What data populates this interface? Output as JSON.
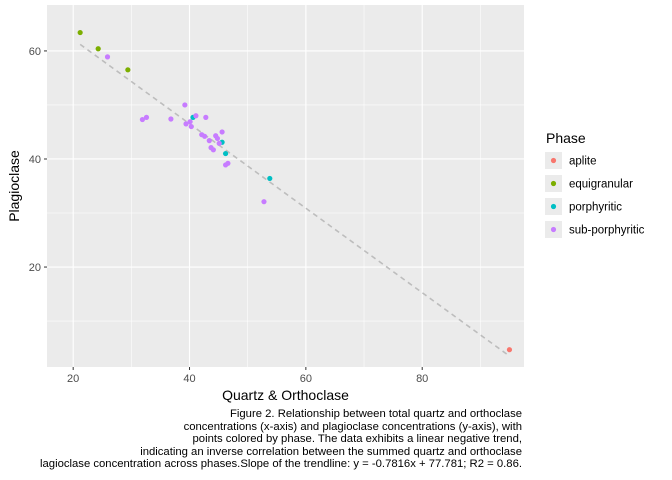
{
  "chart_data": {
    "type": "scatter",
    "xlabel": "Quartz & Orthoclase",
    "ylabel": "Plagioclase",
    "xlim": [
      15.5,
      97.5
    ],
    "ylim": [
      1.5,
      68.5
    ],
    "x_ticks": [
      20,
      40,
      60,
      80
    ],
    "y_ticks": [
      20,
      40,
      60
    ],
    "x_tick_labels": [
      "20",
      "40",
      "60",
      "80"
    ],
    "y_tick_labels": [
      "20",
      "40",
      "60"
    ],
    "grid": true,
    "legend_position": "right",
    "legend_title": "Phase",
    "series": [
      {
        "name": "aplite",
        "color": "#F8766D",
        "points": [
          [
            95.0,
            4.7
          ]
        ]
      },
      {
        "name": "equigranular",
        "color": "#7CAE00",
        "points": [
          [
            21.2,
            63.4
          ],
          [
            24.3,
            60.4
          ],
          [
            29.4,
            56.5
          ]
        ]
      },
      {
        "name": "porphyritic",
        "color": "#00BFC4",
        "points": [
          [
            40.6,
            47.7
          ],
          [
            45.6,
            43.1
          ],
          [
            46.2,
            41.0
          ],
          [
            53.8,
            36.4
          ]
        ]
      },
      {
        "name": "sub-porphyritic",
        "color": "#C77CFF",
        "points": [
          [
            25.9,
            58.9
          ],
          [
            31.9,
            47.3
          ],
          [
            32.6,
            47.7
          ],
          [
            36.8,
            47.4
          ],
          [
            39.2,
            50.0
          ],
          [
            39.4,
            46.5
          ],
          [
            40.1,
            46.9
          ],
          [
            40.3,
            46.0
          ],
          [
            41.1,
            48.0
          ],
          [
            42.1,
            44.5
          ],
          [
            42.6,
            44.2
          ],
          [
            42.8,
            47.7
          ],
          [
            43.4,
            43.4
          ],
          [
            43.7,
            42.1
          ],
          [
            44.1,
            41.7
          ],
          [
            44.5,
            44.3
          ],
          [
            44.8,
            43.8
          ],
          [
            45.1,
            42.9
          ],
          [
            45.6,
            45.0
          ],
          [
            46.2,
            38.9
          ],
          [
            46.6,
            39.2
          ],
          [
            52.8,
            32.1
          ]
        ]
      }
    ],
    "trendline": {
      "slope": -0.7816,
      "intercept": 77.781,
      "x_range": [
        21.2,
        95.0
      ],
      "color": "#bdbdbd",
      "dashed": true
    },
    "caption_lines": [
      "Figure 2. Relationship between total quartz and orthoclase",
      "concentrations (x-axis) and plagioclase concentrations (y-axis), with",
      "points colored by phase. The data exhibits a linear negative trend,",
      "indicating an inverse correlation between the summed quartz and orthoclase",
      "lagioclase concentration across phases.Slope of the trendline: y = -0.7816x + 77.781; R2 = 0.86."
    ]
  }
}
